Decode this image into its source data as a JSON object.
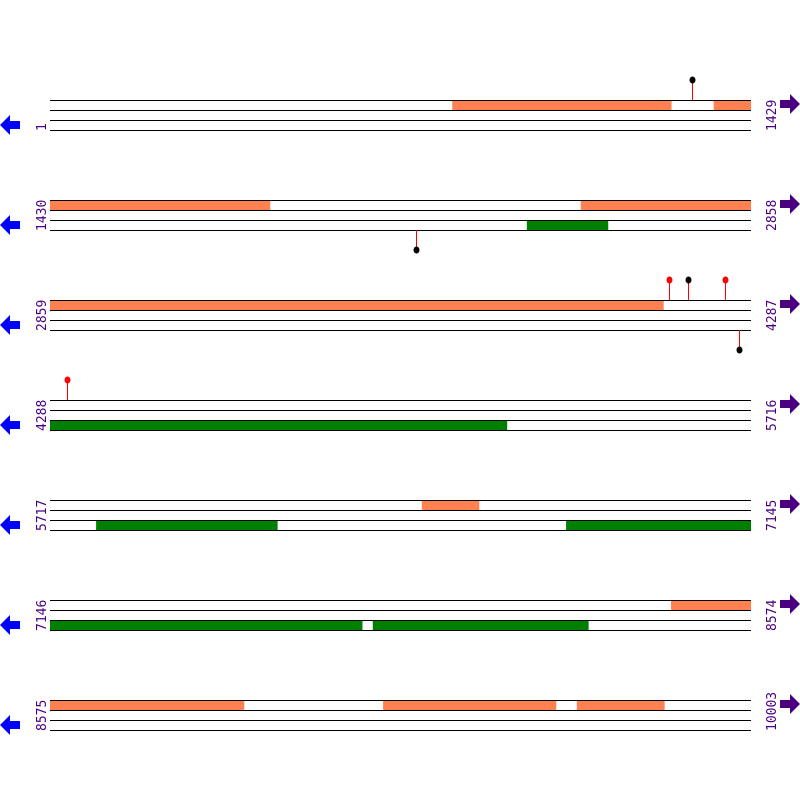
{
  "colors": {
    "upper_feature": "#ff8050",
    "lower_feature": "#008000",
    "label": "#4b0082",
    "left_arrow": "#0000ff",
    "right_arrow": "#4b0082",
    "marker_stem": "#ff0000"
  },
  "icons": {
    "left": "arrow-left-icon",
    "right": "arrow-right-icon"
  },
  "rows": [
    {
      "start": "1",
      "end": "1429",
      "upper": [
        [
          821,
          1267
        ],
        [
          1354,
          1429
        ]
      ],
      "lower": [],
      "markers": [
        {
          "pos": 1310,
          "side": "top",
          "color": "#000000"
        }
      ]
    },
    {
      "start": "1430",
      "end": "2858",
      "upper": [
        [
          1430,
          1878
        ],
        [
          2512,
          2858
        ]
      ],
      "lower": [
        [
          2402,
          2567
        ]
      ],
      "markers": [
        {
          "pos": 2176,
          "side": "bottom",
          "color": "#000000"
        }
      ]
    },
    {
      "start": "2859",
      "end": "4287",
      "upper": [
        [
          2859,
          4109
        ]
      ],
      "lower": [],
      "markers": [
        {
          "pos": 4121,
          "side": "top",
          "color": "#ff0000"
        },
        {
          "pos": 4160,
          "side": "top",
          "color": "#000000"
        },
        {
          "pos": 4235,
          "side": "top",
          "color": "#ff0000"
        },
        {
          "pos": 4263,
          "side": "bottom",
          "color": "#000000"
        }
      ]
    },
    {
      "start": "4288",
      "end": "5716",
      "upper": [],
      "lower": [
        [
          4288,
          5219
        ]
      ],
      "markers": [
        {
          "pos": 4323,
          "side": "top",
          "color": "#ff0000"
        }
      ]
    },
    {
      "start": "5717",
      "end": "7145",
      "upper": [
        [
          6475,
          6591
        ]
      ],
      "lower": [
        [
          5811,
          6180
        ],
        [
          6769,
          7145
        ]
      ],
      "markers": []
    },
    {
      "start": "7146",
      "end": "8574",
      "upper": [
        [
          8412,
          8574
        ]
      ],
      "lower": [
        [
          7146,
          7782
        ],
        [
          7804,
          8243
        ]
      ],
      "markers": []
    },
    {
      "start": "8575",
      "end": "10003",
      "upper": [
        [
          8575,
          8970
        ],
        [
          9254,
          9606
        ],
        [
          9649,
          9827
        ]
      ],
      "lower": [],
      "markers": []
    }
  ]
}
